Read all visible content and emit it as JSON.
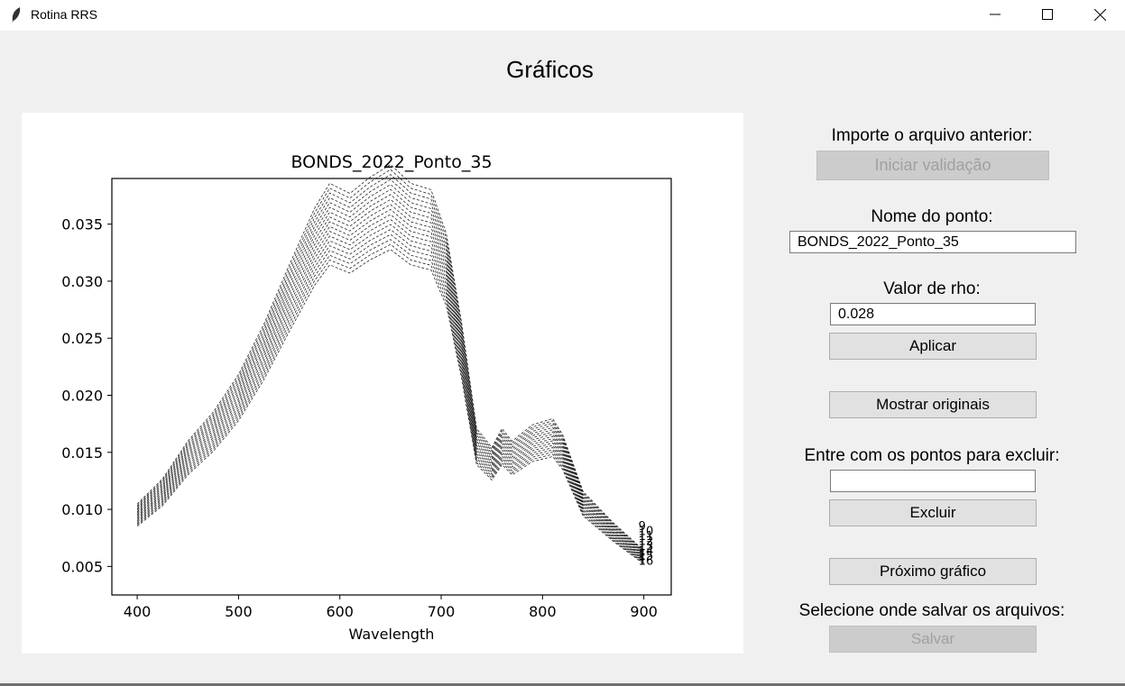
{
  "window": {
    "title": "Rotina RRS",
    "app_icon": "feather-icon",
    "controls": [
      "minimize-icon",
      "maximize-icon",
      "close-icon"
    ]
  },
  "main_title": "Gráficos",
  "controls": {
    "import_label": "Importe o arquivo anterior:",
    "start_validation_button": "Iniciar validação",
    "point_name_label": "Nome do ponto:",
    "point_name_value": "BONDS_2022_Ponto_35",
    "rho_label": "Valor de rho:",
    "rho_value": "0.028",
    "apply_button": "Aplicar",
    "show_originals_button": "Mostrar originais",
    "exclude_label": "Entre com os pontos para excluir:",
    "exclude_value": "",
    "exclude_button": "Excluir",
    "next_chart_button": "Próximo gráfico",
    "save_location_label": "Selecione onde salvar os arquivos:",
    "save_button": "Salvar"
  },
  "chart_data": {
    "type": "line",
    "title": "BONDS_2022_Ponto_35",
    "xlabel": "Wavelength",
    "ylabel": "",
    "xlim": [
      375,
      927
    ],
    "ylim": [
      0.0025,
      0.039
    ],
    "xticks": [
      "400",
      "500",
      "600",
      "700",
      "800",
      "900"
    ],
    "yticks": [
      "0.005",
      "0.010",
      "0.015",
      "0.020",
      "0.025",
      "0.030",
      "0.035"
    ],
    "grid": false,
    "line_color": "#000000",
    "line_style": "dashed",
    "series_count": 18,
    "x": [
      400,
      425,
      450,
      475,
      500,
      525,
      550,
      575,
      590,
      610,
      630,
      650,
      670,
      690,
      705,
      720,
      735,
      750,
      760,
      770,
      790,
      810,
      820,
      840,
      870,
      900
    ],
    "base_values": [
      0.0095,
      0.0115,
      0.0145,
      0.0168,
      0.0198,
      0.0238,
      0.0285,
      0.033,
      0.035,
      0.0342,
      0.0355,
      0.0365,
      0.035,
      0.0345,
      0.031,
      0.024,
      0.0155,
      0.014,
      0.0155,
      0.0145,
      0.0158,
      0.0163,
      0.015,
      0.0105,
      0.008,
      0.0058
    ],
    "end_labels": [
      "9",
      "10",
      "11",
      "12",
      "13",
      "14",
      "15",
      "16"
    ]
  }
}
